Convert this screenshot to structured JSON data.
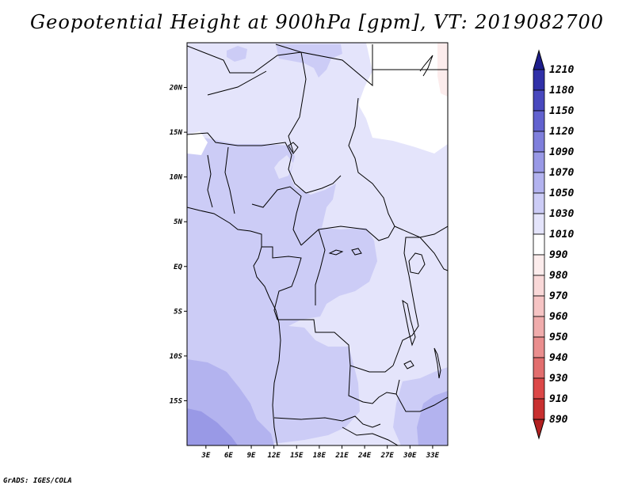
{
  "title": "Geopotential Height at 900hPa [gpm], VT: 2019082700",
  "credit": "GrADS: IGES/COLA",
  "chart_data": {
    "type": "heatmap",
    "variable": "Geopotential Height",
    "level": "900hPa",
    "units": "gpm",
    "valid_time": "2019082700",
    "x_ticks": [
      "3E",
      "6E",
      "9E",
      "12E",
      "15E",
      "18E",
      "21E",
      "24E",
      "27E",
      "30E",
      "33E"
    ],
    "x_tick_values": [
      3,
      6,
      9,
      12,
      15,
      18,
      21,
      24,
      27,
      30,
      33
    ],
    "y_ticks": [
      "20N",
      "15N",
      "10N",
      "5N",
      "EQ",
      "5S",
      "10S",
      "15S"
    ],
    "y_tick_values": [
      20,
      15,
      10,
      5,
      0,
      -5,
      -10,
      -15
    ],
    "lon_range": [
      0.5,
      35
    ],
    "lat_range": [
      -20,
      25
    ],
    "colorbar": {
      "levels": [
        "890",
        "910",
        "930",
        "940",
        "950",
        "960",
        "970",
        "980",
        "990",
        "1010",
        "1030",
        "1050",
        "1070",
        "1090",
        "1120",
        "1150",
        "1180",
        "1210"
      ],
      "colors": [
        "#b22020",
        "#c83030",
        "#dc4848",
        "#e26e6e",
        "#ea8e8e",
        "#f0acac",
        "#f6c4c4",
        "#f9d8d8",
        "#fcecec",
        "#ffffff",
        "#e4e4fb",
        "#ccccf6",
        "#b3b3ef",
        "#9999e6",
        "#7f7fdc",
        "#6262cf",
        "#4848be",
        "#3030a8",
        "#1e1e8c"
      ],
      "extend": "both"
    },
    "regions": [
      {
        "label": "1010",
        "approx_area": "northeast Sudan / Egypt border"
      },
      {
        "label": "1030",
        "approx_area": "Sahel, Chad, Sudan, eastern Congo basin"
      },
      {
        "label": "1050",
        "approx_area": "Gulf of Guinea coast, Congo basin, Angola"
      },
      {
        "label": "1070",
        "approx_area": "South Atlantic off Angola/Namibia"
      },
      {
        "label": "1090",
        "approx_area": "far southwest corner"
      }
    ]
  }
}
